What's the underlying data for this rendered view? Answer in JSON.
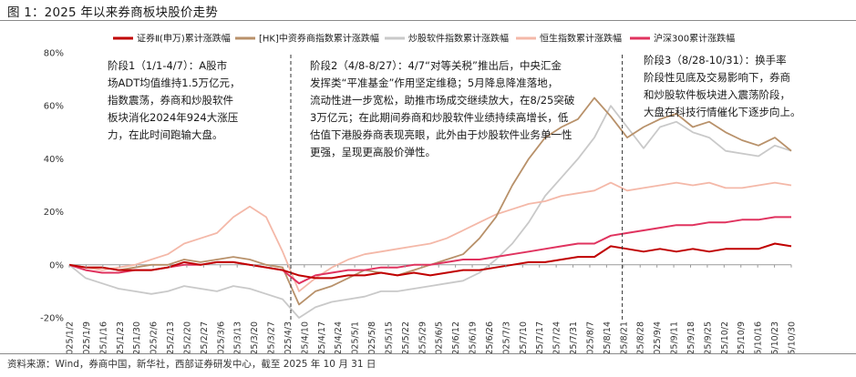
{
  "figure_title": "图 1：2025 年以来券商板块股价走势",
  "source": "资料来源：Wind，券商中国，新华社，西部证券研发中心，截至 2025 年 10 月 31 日",
  "colors": {
    "securities": "#c00000",
    "hk_securities": "#b8916a",
    "finstock_software": "#c9c9c9",
    "hang_seng": "#f4b8a8",
    "csi300": "#e0335f"
  },
  "phase_notes": [
    {
      "lines": [
        "阶段1（1/1-4/7）：A股市",
        "场ADT均值维持1.5万亿元，",
        "指数震荡，券商和炒股软件",
        "板块消化2024年924大涨压",
        "力，在此时间跑输大盘。"
      ]
    },
    {
      "lines": [
        "阶段2（4/8-8/27）：4/7“对等关税”推出后，中央汇金",
        "发挥类“平准基金”作用坚定维稳；5月降息降准落地，",
        "流动性进一步宽松，助推市场成交继续放大，在8/25突破",
        "3万亿元；在此期间券商和炒股软件业绩持续高增长，低",
        "估值下港股券商表现亮眼，此外由于炒股软件业务单一性",
        "更强，呈现更高股价弹性。"
      ]
    },
    {
      "lines": [
        "阶段3（8/28-10/31）：换手率",
        "阶段性见底及交易影响下，券商",
        "和炒股软件板块进入震荡阶段，",
        "大盘在科技行情催化下逐步向上。"
      ]
    }
  ],
  "chart_data": {
    "type": "line",
    "title": "",
    "ylim": [
      -20,
      80
    ],
    "yticks": [
      "-20%",
      "0%",
      "20%",
      "40%",
      "60%",
      "80%"
    ],
    "x_tick_labels": [
      "2025/1/2",
      "2025/1/9",
      "2025/1/16",
      "2025/1/23",
      "2025/1/30",
      "2025/2/6",
      "2025/2/13",
      "2025/2/20",
      "2025/2/27",
      "2025/3/6",
      "2025/3/13",
      "2025/3/20",
      "2025/3/27",
      "2025/4/3",
      "2025/4/10",
      "2025/4/17",
      "2025/4/24",
      "2025/5/1",
      "2025/5/8",
      "2025/5/15",
      "2025/5/22",
      "2025/5/29",
      "2025/6/5",
      "2025/6/12",
      "2025/6/19",
      "2025/6/26",
      "2025/7/3",
      "2025/7/10",
      "2025/7/17",
      "2025/7/24",
      "2025/7/31",
      "2025/8/7",
      "2025/8/14",
      "2025/8/21",
      "2025/8/28",
      "2025/9/4",
      "2025/9/11",
      "2025/9/18",
      "2025/9/25",
      "2025/10/2",
      "2025/10/9",
      "2025/10/16",
      "2025/10/23",
      "2025/10/30"
    ],
    "phase_dividers": [
      "2025/4/7",
      "2025/8/27"
    ],
    "legend_position": "top",
    "x_index_by_week": true,
    "series": [
      {
        "name": "证券Ⅱ(申万)累计涨跌幅",
        "color_key": "securities",
        "values": [
          0,
          -1,
          -1,
          -2,
          -2,
          -2,
          -1,
          1,
          0,
          1,
          1,
          0,
          -1,
          -2,
          -4,
          -5,
          -5,
          -4,
          -4,
          -3,
          -4,
          -3,
          -4,
          -3,
          -2,
          -2,
          -1,
          0,
          1,
          1,
          2,
          3,
          3,
          7,
          6,
          5,
          6,
          5,
          6,
          5,
          6,
          6,
          6,
          8,
          7
        ]
      },
      {
        "name": "[HK]中资券商指数累计涨跌幅",
        "color_key": "hk_securities",
        "values": [
          0,
          -1,
          -1,
          -2,
          -1,
          0,
          0,
          2,
          1,
          2,
          3,
          2,
          0,
          -1,
          -15,
          -10,
          -8,
          -5,
          -2,
          -3,
          -4,
          -2,
          0,
          2,
          4,
          10,
          18,
          30,
          40,
          48,
          52,
          55,
          63,
          56,
          48,
          52,
          55,
          57,
          52,
          54,
          50,
          47,
          45,
          48,
          43
        ]
      },
      {
        "name": "炒股软件指数累计涨跌幅",
        "color_key": "finstock_software",
        "values": [
          0,
          -5,
          -7,
          -9,
          -10,
          -11,
          -10,
          -8,
          -9,
          -10,
          -8,
          -9,
          -11,
          -13,
          -20,
          -16,
          -14,
          -13,
          -12,
          -10,
          -10,
          -9,
          -8,
          -7,
          -6,
          -3,
          2,
          8,
          16,
          26,
          33,
          40,
          48,
          60,
          52,
          44,
          52,
          54,
          50,
          48,
          43,
          42,
          41,
          45,
          43
        ]
      },
      {
        "name": "恒生指数累计涨跌幅",
        "color_key": "hang_seng",
        "values": [
          0,
          -1,
          -2,
          -1,
          0,
          2,
          4,
          8,
          10,
          12,
          18,
          22,
          18,
          5,
          -10,
          -5,
          -1,
          2,
          4,
          5,
          6,
          7,
          8,
          10,
          13,
          16,
          19,
          21,
          23,
          24,
          26,
          27,
          28,
          31,
          28,
          29,
          30,
          31,
          30,
          31,
          29,
          29,
          30,
          31,
          30
        ]
      },
      {
        "name": "沪深300累计涨跌幅",
        "color_key": "csi300",
        "values": [
          0,
          -2,
          -3,
          -3,
          -2,
          -2,
          -1,
          0,
          0,
          1,
          1,
          0,
          -1,
          -2,
          -7,
          -4,
          -3,
          -2,
          -2,
          -1,
          -1,
          0,
          0,
          1,
          2,
          2,
          3,
          4,
          5,
          6,
          7,
          8,
          8,
          11,
          12,
          13,
          14,
          15,
          15,
          16,
          16,
          17,
          17,
          18,
          18
        ]
      }
    ]
  }
}
